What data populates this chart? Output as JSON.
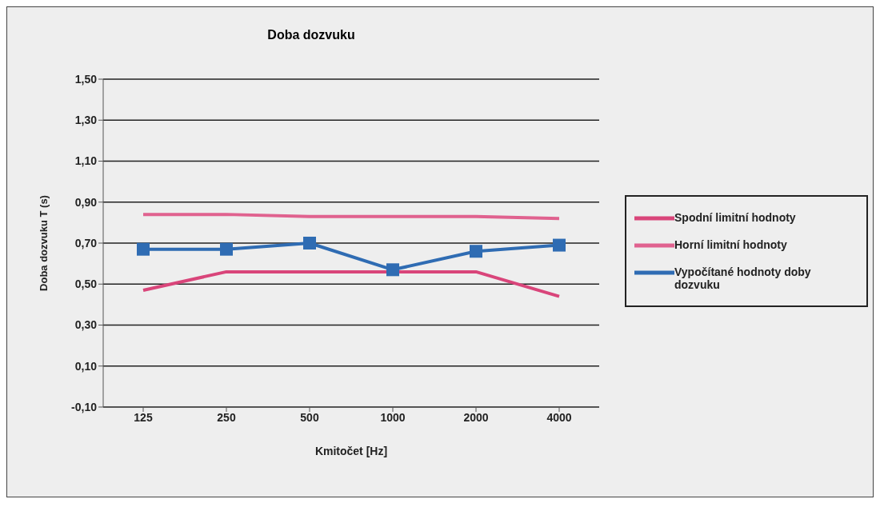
{
  "chart_data": {
    "type": "line",
    "title": "Doba dozvuku",
    "xlabel": "Kmitočet [Hz]",
    "ylabel": "Doba dozvuku T (s)",
    "categories": [
      "125",
      "250",
      "500",
      "1000",
      "2000",
      "4000"
    ],
    "series": [
      {
        "name": "Spodní limitní hodnoty",
        "color": "#d9457a",
        "marker": "none",
        "values": [
          0.47,
          0.56,
          0.56,
          0.56,
          0.56,
          0.44
        ]
      },
      {
        "name": "Horní limitní hodnoty",
        "color": "#e0628f",
        "marker": "none",
        "values": [
          0.84,
          0.84,
          0.83,
          0.83,
          0.83,
          0.82
        ]
      },
      {
        "name": "Vypočítané hodnoty doby dozvuku",
        "color": "#2f6cb3",
        "marker": "square",
        "values": [
          0.67,
          0.67,
          0.7,
          0.57,
          0.66,
          0.69
        ]
      }
    ],
    "ylim": [
      -0.1,
      1.5
    ],
    "yticks": [
      {
        "value": -0.1,
        "label": "-0,10"
      },
      {
        "value": 0.1,
        "label": "0,10"
      },
      {
        "value": 0.3,
        "label": "0,30"
      },
      {
        "value": 0.5,
        "label": "0,50"
      },
      {
        "value": 0.7,
        "label": "0,70"
      },
      {
        "value": 0.9,
        "label": "0,90"
      },
      {
        "value": 1.1,
        "label": "1,10"
      },
      {
        "value": 1.3,
        "label": "1,30"
      },
      {
        "value": 1.5,
        "label": "1,50"
      }
    ],
    "grid": "y",
    "legend": "right",
    "line_style": "solid"
  }
}
